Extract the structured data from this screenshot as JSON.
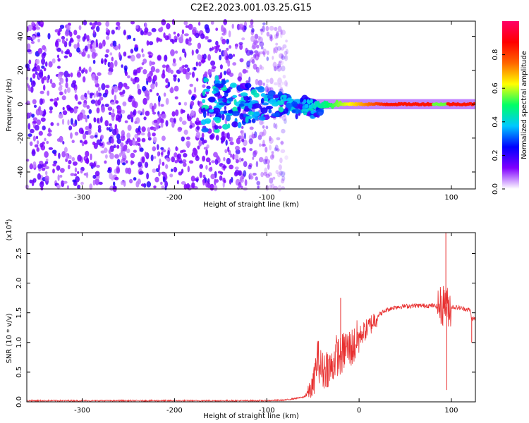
{
  "figure": {
    "title": "C2E2.2023.001.03.25.G15"
  },
  "chart_data": [
    {
      "type": "heatmap",
      "xlabel": "Height of straight line (km)",
      "ylabel": "Frequency (Hz)",
      "xlim": [
        -360,
        126
      ],
      "ylim": [
        -50,
        49
      ],
      "xticks": [
        -300,
        -200,
        -100,
        0,
        100
      ],
      "yticks": [
        -40,
        -20,
        0,
        20,
        40
      ],
      "colorbar": {
        "label": "Normalized spectral amplitude",
        "range": [
          0,
          1
        ],
        "ticks": [
          "0.0",
          "0.2",
          "0.4",
          "0.6",
          "0.8"
        ],
        "colormap": [
          "#ffffff",
          "#8000ff",
          "#0000ff",
          "#00c8ff",
          "#00ff66",
          "#ffff00",
          "#ff6600",
          "#ff0000",
          "#ff0066"
        ]
      },
      "features": [
        {
          "name": "noise",
          "x": [
            -360,
            -80
          ],
          "y": [
            -50,
            49
          ],
          "amplitude": 0.1
        },
        {
          "name": "main-tone",
          "x": [
            -80,
            126
          ],
          "y": 0,
          "amplitude_max": 0.9
        }
      ]
    },
    {
      "type": "line",
      "xlabel": "Height of straight line (km)",
      "ylabel": "SNR (10 * v/v)",
      "yscale_label": "(x10",
      "yscale_exp": "4",
      "yscale_close": ")",
      "xlim": [
        -360,
        126
      ],
      "ylim": [
        0,
        2.85
      ],
      "xticks": [
        -300,
        -200,
        -100,
        0,
        100
      ],
      "yticks": [
        "0.0",
        "0.5",
        "1.0",
        "1.5",
        "2.0",
        "2.5"
      ],
      "color": "#e83030",
      "series": [
        {
          "x": [
            -360,
            -100,
            -80,
            -60,
            -50,
            -45,
            -40,
            -35,
            -30,
            -25,
            -20,
            -15,
            -10,
            -5,
            0,
            10,
            20,
            30,
            40,
            60,
            80,
            90,
            93,
            95,
            100,
            110,
            120,
            122,
            126
          ],
          "y": [
            0.02,
            0.02,
            0.03,
            0.08,
            0.25,
            0.75,
            0.5,
            0.6,
            0.55,
            0.8,
            0.75,
            0.9,
            0.9,
            0.95,
            1.1,
            1.25,
            1.45,
            1.55,
            1.6,
            1.62,
            1.62,
            1.6,
            1.7,
            1.6,
            1.6,
            1.58,
            1.55,
            1.4,
            1.4
          ]
        }
      ],
      "spikes": [
        {
          "x": -20,
          "y": 1.75
        },
        {
          "x": 94,
          "y": 2.85
        },
        {
          "x": 95,
          "y": 0.2
        },
        {
          "x": 122,
          "y": 1.0
        }
      ]
    }
  ]
}
